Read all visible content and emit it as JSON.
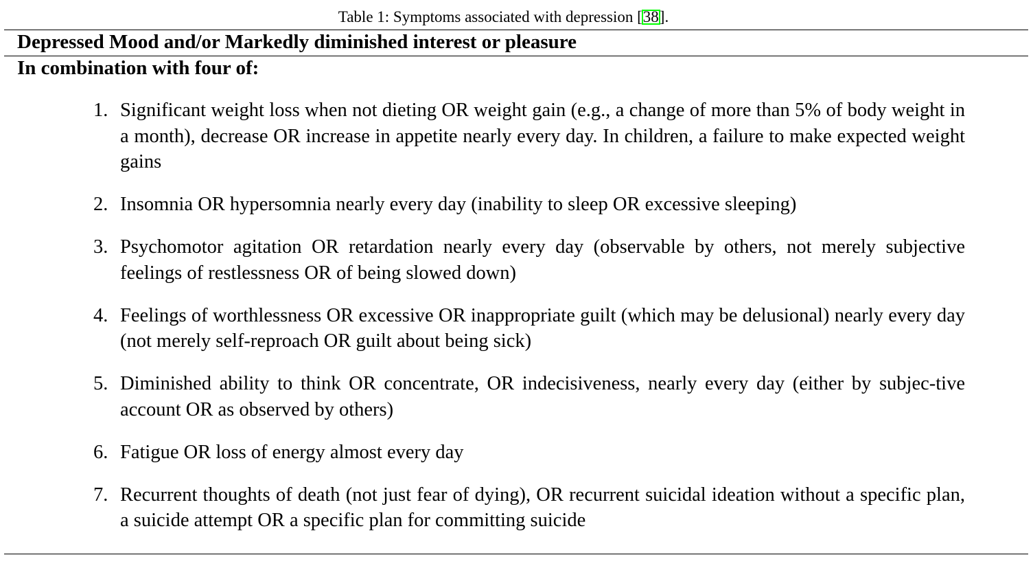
{
  "caption": {
    "prefix": "Table 1: Symptoms associated with depression [",
    "citation": "38",
    "suffix": "]."
  },
  "table": {
    "header_row": "Depressed Mood and/or Markedly diminished interest or pleasure",
    "subheader_row": "In combination with four of:",
    "symptoms": [
      {
        "number": "1.",
        "text": "Significant weight loss when not dieting OR weight gain (e.g., a change of more than 5% of body weight in a month), decrease OR increase in appetite nearly every day. In children, a failure to make expected weight gains"
      },
      {
        "number": "2.",
        "text": "Insomnia OR hypersomnia nearly every day (inability to sleep OR excessive sleeping)"
      },
      {
        "number": "3.",
        "text": "Psychomotor agitation OR retardation nearly every day (observable by others, not merely subjective feelings of restlessness OR of being slowed down)"
      },
      {
        "number": "4.",
        "text": "Feelings of worthlessness OR excessive OR inappropriate guilt (which may be delusional) nearly every day (not merely self-reproach OR guilt about being sick)"
      },
      {
        "number": "5.",
        "text": "Diminished ability to think OR concentrate, OR indecisiveness, nearly every day (either by subjec-tive account OR as observed by others)"
      },
      {
        "number": "6.",
        "text": "Fatigue OR loss of energy almost every day"
      },
      {
        "number": "7.",
        "text": "Recurrent thoughts of death (not just fear of dying), OR recurrent suicidal ideation without a specific plan, a suicide attempt OR a specific plan for committing suicide"
      }
    ]
  },
  "colors": {
    "citation_box": "#00ff00",
    "text": "#000000",
    "background": "#ffffff"
  }
}
